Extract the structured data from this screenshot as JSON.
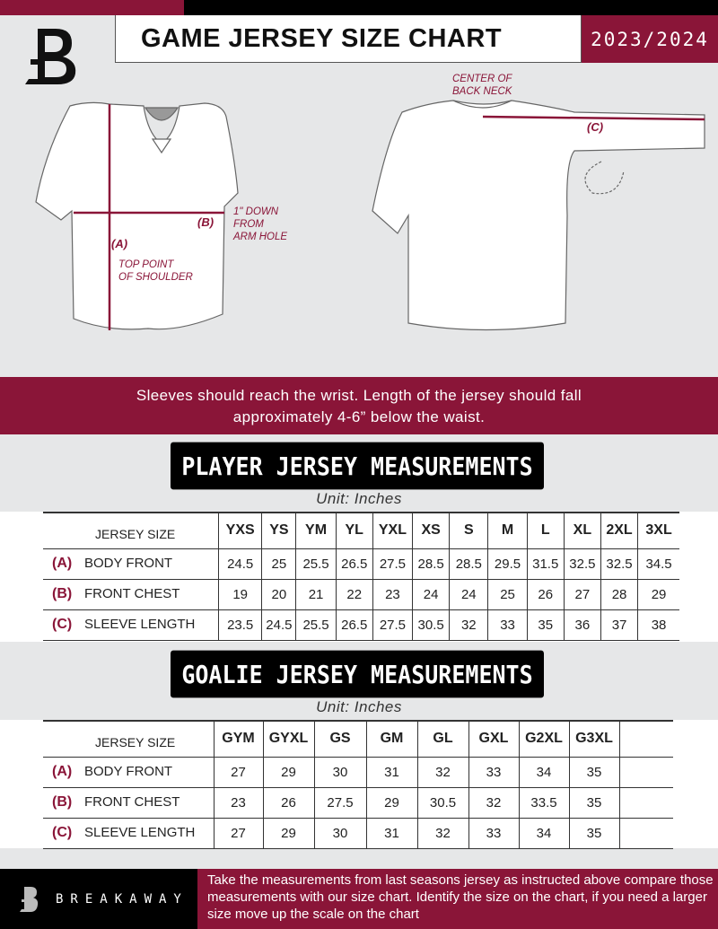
{
  "header": {
    "title": "GAME JERSEY SIZE CHART",
    "season": "2023/2024",
    "logo": "breakaway-b-logo"
  },
  "diagram": {
    "label_a": "(A)",
    "label_b": "(B)",
    "label_c": "(C)",
    "top_point_line1": "TOP POINT",
    "top_point_line2": "OF SHOULDER",
    "arm_hole_line1": "1\" DOWN",
    "arm_hole_line2": "FROM",
    "arm_hole_line3": "ARM HOLE",
    "back_neck_line1": "CENTER OF",
    "back_neck_line2": "BACK NECK"
  },
  "band": {
    "line1": "Sleeves should reach the wrist. Length of the jersey should fall",
    "line2": "approximately 4-6” below the waist."
  },
  "player": {
    "title": "PLAYER JERSEY MEASUREMENTS",
    "unit": "Unit: Inches",
    "size_header": "JERSEY SIZE",
    "sizes": [
      "YXS",
      "YS",
      "YM",
      "YL",
      "YXL",
      "XS",
      "S",
      "M",
      "L",
      "XL",
      "2XL",
      "3XL"
    ],
    "rows": [
      {
        "letter": "(A)",
        "label": "BODY FRONT",
        "values": [
          "24.5",
          "25",
          "25.5",
          "26.5",
          "27.5",
          "28.5",
          "28.5",
          "29.5",
          "31.5",
          "32.5",
          "32.5",
          "34.5"
        ]
      },
      {
        "letter": "(B)",
        "label": "FRONT CHEST",
        "values": [
          "19",
          "20",
          "21",
          "22",
          "23",
          "24",
          "24",
          "25",
          "26",
          "27",
          "28",
          "29"
        ]
      },
      {
        "letter": "(C)",
        "label": "SLEEVE LENGTH",
        "values": [
          "23.5",
          "24.5",
          "25.5",
          "26.5",
          "27.5",
          "30.5",
          "32",
          "33",
          "35",
          "36",
          "37",
          "38"
        ]
      }
    ]
  },
  "goalie": {
    "title": "GOALIE JERSEY MEASUREMENTS",
    "unit": "Unit: Inches",
    "size_header": "JERSEY SIZE",
    "sizes": [
      "GYM",
      "GYXL",
      "GS",
      "GM",
      "GL",
      "GXL",
      "G2XL",
      "G3XL",
      ""
    ],
    "rows": [
      {
        "letter": "(A)",
        "label": "BODY FRONT",
        "values": [
          "27",
          "29",
          "30",
          "31",
          "32",
          "33",
          "34",
          "35",
          ""
        ]
      },
      {
        "letter": "(B)",
        "label": "FRONT CHEST",
        "values": [
          "23",
          "26",
          "27.5",
          "29",
          "30.5",
          "32",
          "33.5",
          "35",
          ""
        ]
      },
      {
        "letter": "(C)",
        "label": "SLEEVE LENGTH",
        "values": [
          "27",
          "29",
          "30",
          "31",
          "32",
          "33",
          "34",
          "35",
          ""
        ]
      }
    ]
  },
  "footer": {
    "brand": "BREAKAWAY",
    "note": "Take the measurements from last seasons jersey as instructed above compare those measurements  with our size chart. Identify the size on the chart, if you need a larger size move up the scale on the chart"
  },
  "colors": {
    "accent": "#8a1538",
    "dark": "#000000",
    "background": "#e6e7e8"
  }
}
